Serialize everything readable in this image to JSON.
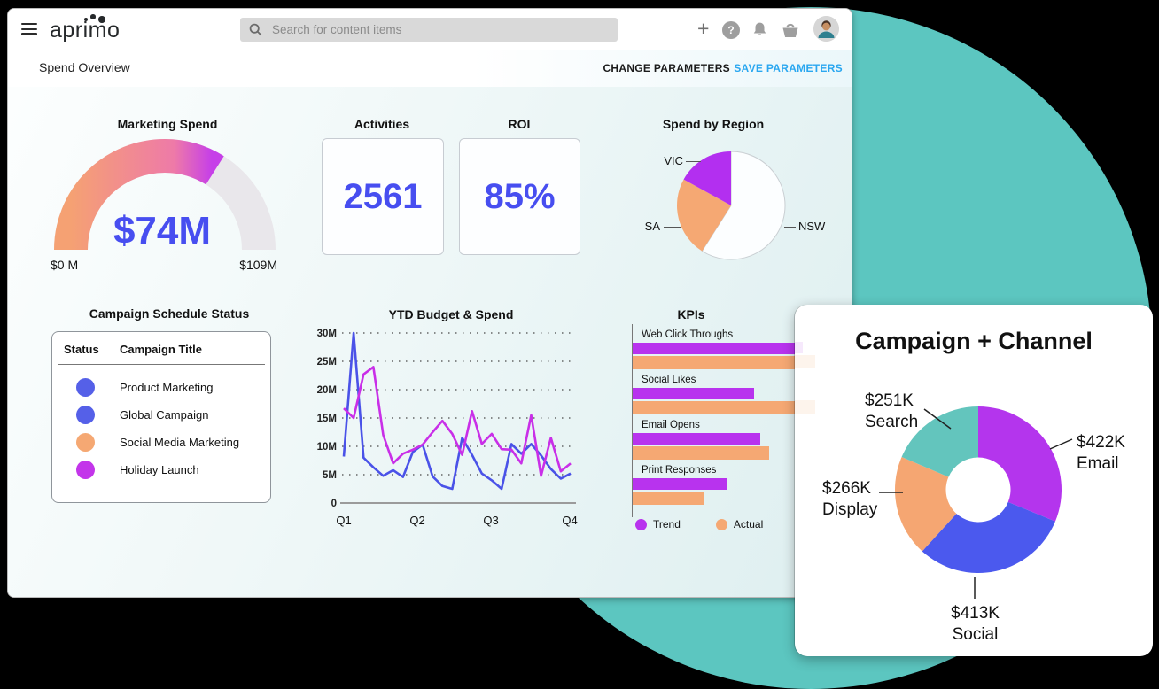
{
  "brand": "aprimo",
  "topbar": {
    "search_placeholder": "Search for content items"
  },
  "subbar": {
    "title": "Spend Overview",
    "change_parameters": "CHANGE PARAMETERS",
    "save_parameters": "SAVE PARAMETERS"
  },
  "stats": [
    {
      "title": "Activities",
      "value": "2561"
    },
    {
      "title": "ROI",
      "value": "85%"
    }
  ],
  "campaign_table": {
    "title": "Campaign Schedule Status",
    "columns": [
      "Status",
      "Campaign Title"
    ],
    "rows": [
      {
        "status_color": "#5560e8",
        "label": "Product Marketing"
      },
      {
        "status_color": "#5560e8",
        "label": "Global Campaign"
      },
      {
        "status_color": "#f5a873",
        "label": "Social Media Marketing"
      },
      {
        "status_color": "#c335ea",
        "label": "Holiday Launch"
      }
    ]
  },
  "chart_data": [
    {
      "id": "marketing-spend-gauge",
      "type": "gauge",
      "title": "Marketing Spend",
      "value": 74,
      "min": 0,
      "max": 109,
      "value_label": "$74M",
      "min_label": "$0 M",
      "max_label": "$109M",
      "arc_colors": [
        "#f5a173",
        "#ee7aa8",
        "#c63fe8"
      ],
      "track_color": "#e9e7eb"
    },
    {
      "id": "spend-by-region",
      "type": "pie",
      "title": "Spend by Region",
      "labels": [
        "NSW",
        "SA",
        "VIC"
      ],
      "values": [
        59,
        24,
        17
      ],
      "colors": [
        "#fcfeff",
        "#f5a873",
        "#b32ff0"
      ],
      "strokes": [
        "#c9ced2",
        "none",
        "none"
      ]
    },
    {
      "id": "ytd-budget-spend",
      "type": "line",
      "title": "YTD Budget & Spend",
      "x_ticks": [
        "Q1",
        "Q2",
        "Q3",
        "Q4"
      ],
      "y_ticks": [
        "30M",
        "25M",
        "20M",
        "15M",
        "10M",
        "5M",
        "0"
      ],
      "ymax": 30,
      "grid": "dotted",
      "unit": "M",
      "series": [
        {
          "name": "blue",
          "color": "#4a52e8",
          "values": [
            8.2,
            30,
            8,
            6.3,
            4.8,
            5.8,
            4.6,
            9,
            10.3,
            4.7,
            3,
            2.5,
            11.5,
            8.5,
            5.2,
            4,
            2.5,
            10.4,
            8.7,
            10.4,
            8.4,
            6,
            4.3,
            5.2
          ]
        },
        {
          "name": "magenta",
          "color": "#c92fe8",
          "values": [
            16.7,
            15,
            22.7,
            24,
            12,
            7,
            8.7,
            9.4,
            10.3,
            12.5,
            14.5,
            12.2,
            8.5,
            16.2,
            10.4,
            12.2,
            9.5,
            9.4,
            7,
            15.5,
            4.8,
            11.5,
            5.6,
            7
          ]
        }
      ]
    },
    {
      "id": "kpis",
      "type": "bar",
      "title": "KPIs",
      "orientation": "horizontal",
      "categories": [
        "Web Click Throughs",
        "Social Likes",
        "Email Opens",
        "Print Responses"
      ],
      "series": [
        {
          "name": "Trend",
          "color": "#b833ee",
          "values": [
            93,
            66,
            69,
            51
          ]
        },
        {
          "name": "Actual",
          "color": "#f5a873",
          "values": [
            100,
            100,
            74,
            39
          ]
        }
      ],
      "value_unit": "percent-of-max"
    },
    {
      "id": "campaign-channel",
      "type": "donut",
      "title": "Campaign + Channel",
      "labels": [
        "Email",
        "Social",
        "Display",
        "Search"
      ],
      "values": [
        422,
        413,
        266,
        251
      ],
      "value_labels": [
        "$422K",
        "$413K",
        "$266K",
        "$251K"
      ],
      "colors": [
        "#b435ed",
        "#4b59ee",
        "#f5a672",
        "#63c5bd"
      ]
    }
  ],
  "colors": {
    "accent_blue": "#474ef0",
    "save_blue": "#2aa7f0",
    "teal_circle": "#5cc6c0",
    "trend_purple": "#b833ee",
    "actual_orange": "#f5a873"
  }
}
